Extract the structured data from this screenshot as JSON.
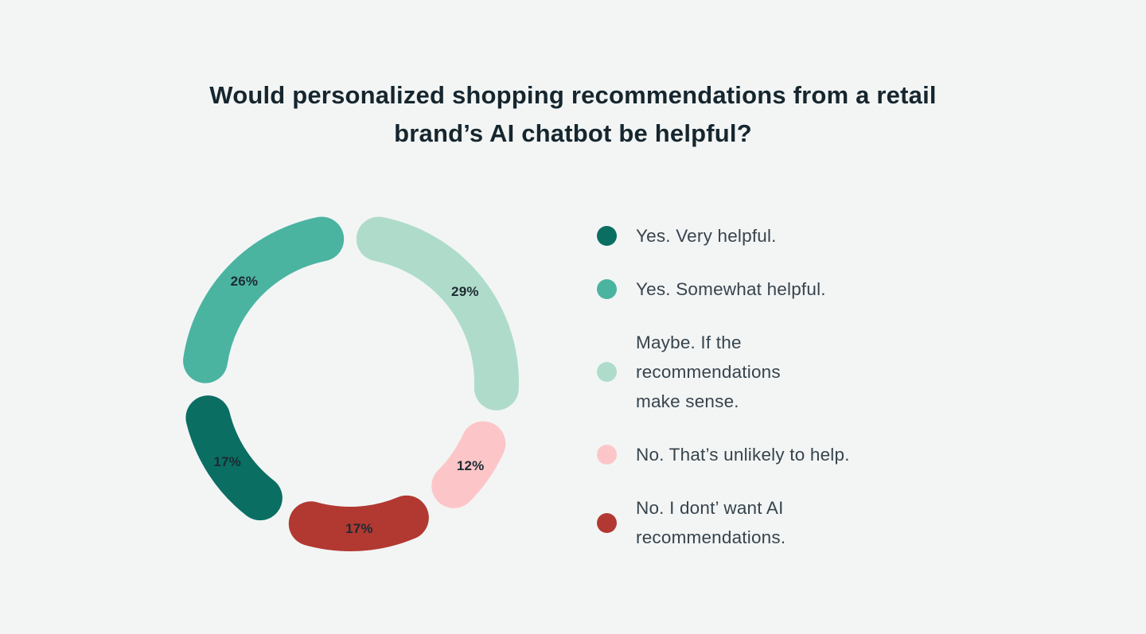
{
  "header": {
    "title": "Would personalized shopping recommendations from a retail\nbrand’s AI chatbot be helpful?"
  },
  "chart_data": {
    "type": "pie",
    "subtype": "donut",
    "title": "Would personalized shopping recommendations from a retail brand’s AI chatbot be helpful?",
    "unit": "%",
    "start_angle_deg": 0,
    "direction": "clockwise",
    "legend_position": "right",
    "segments": [
      {
        "label": "Maybe. If the recommendations make sense.",
        "value": 29,
        "color": "#afdcca"
      },
      {
        "label": "No. That’s unlikely to help.",
        "value": 12,
        "color": "#fcc6c8"
      },
      {
        "label": "No. I dont’ want AI recommendations.",
        "value": 17,
        "color": "#b23931"
      },
      {
        "label": "Yes. Very helpful.",
        "value": 17,
        "color": "#0b6e63"
      },
      {
        "label": "Yes. Somewhat helpful.",
        "value": 26,
        "color": "#4ab4a1"
      }
    ]
  },
  "legend": {
    "items": [
      {
        "label": "Yes. Very helpful.",
        "color": "#0b6e63"
      },
      {
        "label": "Yes. Somewhat helpful.",
        "color": "#4ab4a1"
      },
      {
        "label": "Maybe. If the\nrecommendations\nmake sense.",
        "color": "#afdcca"
      },
      {
        "label": "No. That’s unlikely to help.",
        "color": "#fcc6c8"
      },
      {
        "label": "No. I dont’ want AI\nrecommendations.",
        "color": "#b23931"
      }
    ]
  },
  "style": {
    "background": "#f3f5f5",
    "title_color": "#16262e",
    "legend_text_color": "#37444d",
    "percent_label_color": "#1c2a32"
  }
}
